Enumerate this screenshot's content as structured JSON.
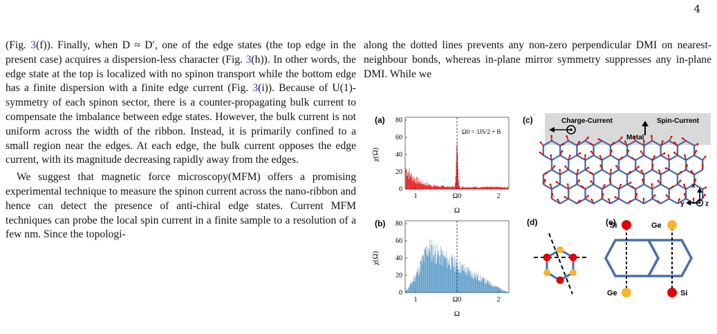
{
  "page_number": "4",
  "left_column": {
    "para1": {
      "s1": "(Fig. ",
      "r1": "3",
      "s2": "(f)). Finally, when D ≈ D′, one of the edge states (the top edge in the present case) acquires a dispersion-less character (Fig. ",
      "r2": "3",
      "s3": "(h)). In other words, the edge state at the top is localized with no spinon transport while the bottom edge has a finite dispersion with a finite edge current (Fig. ",
      "r3": "3",
      "s4": "(i)). Because of U(1)-symmetry of each spinon sector, there is a counter-propagating bulk current to compensate the imbalance between edge states. However, the bulk current is not uniform across the width of the ribbon. Instead, it is primarily confined to a small region near the edges. At each edge, the bulk current opposes the edge current, with its magnitude decreasing rapidly away from the edges."
    },
    "para2": "We suggest that magnetic force microscopy(MFM) offers a promising experimental technique to measure the spinon current across the nano-ribbon and hence can detect the presence of anti-chiral edge states. Current MFM techniques can probe the local spin current in a finite sample to a resolution of a few nm. Since the topologi-"
  },
  "right_column": {
    "text": "along the dotted lines prevents any non-zero perpendicular DMI on nearest-neighbour bonds, whereas in-plane mirror symmetry suppresses any in-plane DMI. While we"
  },
  "figure": {
    "panel_a": {
      "label": "(a)",
      "ylabel": "χ(Ω)",
      "xlabel": "Ω",
      "yticks": [
        "0",
        "20",
        "40",
        "60",
        "80"
      ],
      "xticks": [
        "1",
        "Ω0",
        "2"
      ],
      "annotation": "Ω0 = 3JS/2 + B",
      "color": "#e00000"
    },
    "panel_b": {
      "label": "(b)",
      "ylabel": "χ(Ω)",
      "xlabel": "Ω",
      "yticks": [
        "0",
        "20",
        "40",
        "60",
        "80"
      ],
      "xticks": [
        "1",
        "Ω0",
        "2"
      ],
      "color": "#1f77b4"
    },
    "panel_c": {
      "label": "(c)",
      "charge_current": "Charge-Current",
      "spin_current": "Spin-Current",
      "metal": "Metal",
      "axis_x": "x",
      "axis_y": "y",
      "axis_z": "z"
    },
    "panel_d": {
      "label": "(d)"
    },
    "panel_e": {
      "label": "(e)",
      "si_top": "Si",
      "ge_top": "Ge",
      "ge_bottom": "Ge",
      "si_bottom": "Si"
    }
  }
}
